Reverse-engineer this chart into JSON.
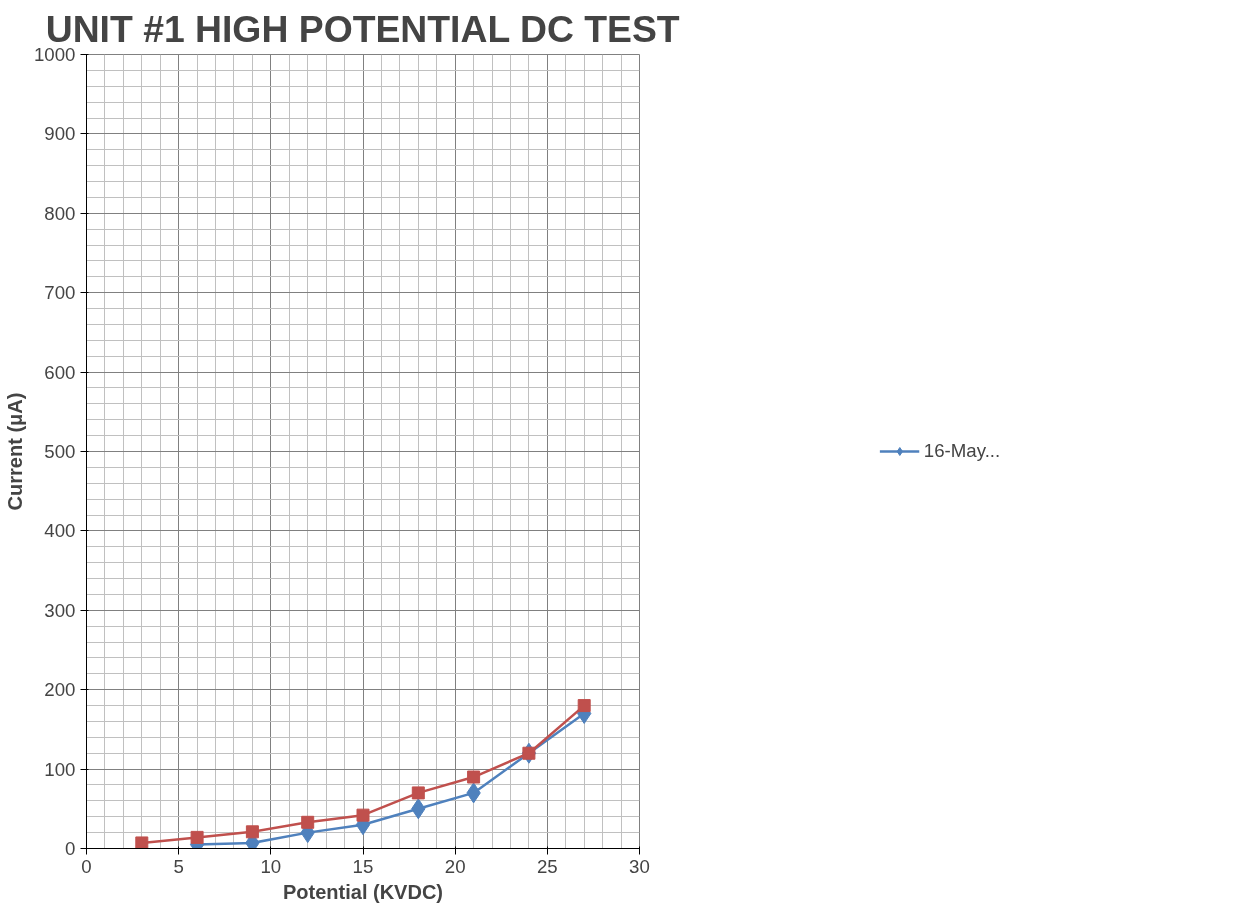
{
  "chart_data": {
    "type": "line",
    "title": "UNIT #1 HIGH POTENTIAL DC TEST",
    "xlabel": "Potential (KVDC)",
    "ylabel": "Current (μA)",
    "xlim": [
      0,
      30
    ],
    "xticks": [
      0,
      5,
      10,
      15,
      20,
      25,
      30
    ],
    "ylim": [
      0,
      1000
    ],
    "yticks": [
      0,
      100,
      200,
      300,
      400,
      500,
      600,
      700,
      800,
      900,
      1000
    ],
    "grid": true,
    "legend": "right",
    "series": [
      {
        "name": "16-May...",
        "color": "#4f81bd",
        "marker": "diamond",
        "x": [
          6,
          9,
          12,
          15,
          18,
          21,
          24,
          27
        ],
        "values": [
          5,
          7,
          20,
          30,
          50,
          70,
          120,
          170
        ]
      },
      {
        "color": "#c0504d",
        "marker": "square",
        "x": [
          3,
          6,
          9,
          12,
          15,
          18,
          21,
          24,
          27
        ],
        "values": [
          7,
          14,
          21,
          33,
          42,
          70,
          90,
          120,
          180
        ]
      }
    ]
  }
}
